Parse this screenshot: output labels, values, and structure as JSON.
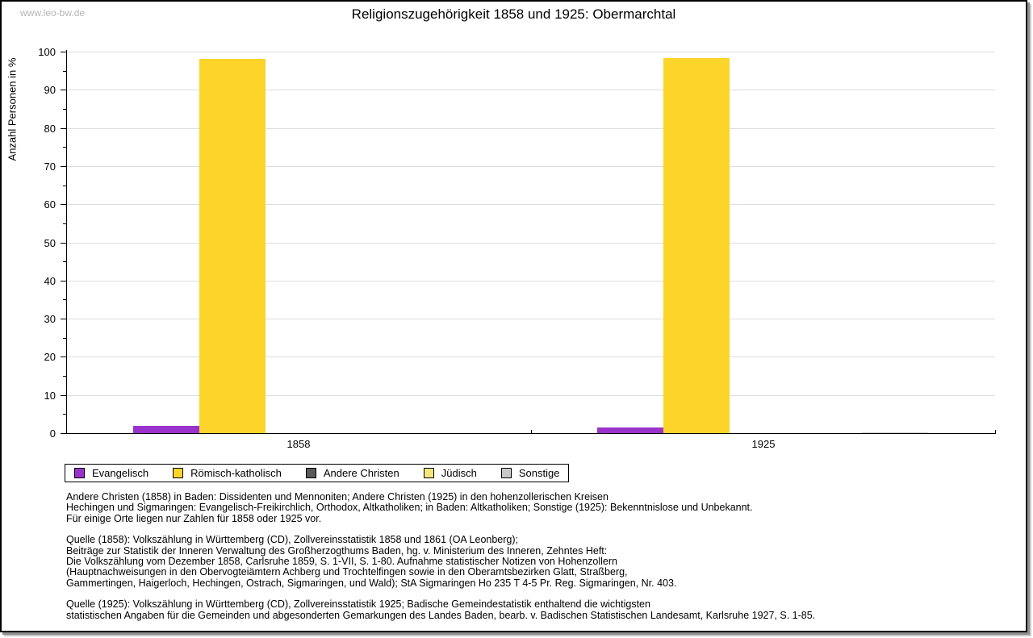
{
  "watermark": "www.leo-bw.de",
  "title": "Religionszugehörigkeit 1858 und 1925: Obermarchtal",
  "chart_data": {
    "type": "bar",
    "title": "Religionszugehörigkeit 1858 und 1925: Obermarchtal",
    "xlabel": "",
    "ylabel": "Anzahl Personen in %",
    "ylim": [
      0,
      100
    ],
    "ytick_major_step": 10,
    "ytick_minor_step": 5,
    "grid": true,
    "legend_position": "bottom",
    "categories": [
      "1858",
      "1925"
    ],
    "series": [
      {
        "name": "Evangelisch",
        "color": "#9933CC",
        "values": [
          1.8,
          1.4
        ]
      },
      {
        "name": "Römisch-katholisch",
        "color": "#FCD42A",
        "values": [
          98.2,
          98.4
        ]
      },
      {
        "name": "Andere Christen",
        "color": "#5A5A5A",
        "values": [
          0,
          0
        ]
      },
      {
        "name": "Jüdisch",
        "color": "#F5E37E",
        "values": [
          0,
          0
        ]
      },
      {
        "name": "Sonstige",
        "color": "#C8C8C8",
        "values": [
          0,
          0.2
        ]
      }
    ]
  },
  "colors": {
    "grid": "#DDDDDD",
    "axis": "#000000",
    "watermark": "#B5B5B5"
  },
  "footnotes": {
    "para1": [
      "Andere Christen (1858) in Baden: Dissidenten und Mennoniten; Andere Christen (1925) in den hohenzollerischen Kreisen",
      "Hechingen und Sigmaringen: Evangelisch-Freikirchlich, Orthodox, Altkatholiken; in Baden: Altkatholiken; Sonstige (1925): Bekenntnislose und Unbekannt.",
      "Für einige Orte liegen nur Zahlen für 1858 oder 1925 vor."
    ],
    "para2": [
      "Quelle (1858): Volkszählung in Württemberg (CD), Zollvereinsstatistik 1858 und 1861 (OA Leonberg);",
      "Beiträge zur Statistik der Inneren Verwaltung des Großherzogthums Baden, hg. v. Ministerium des Inneren, Zehntes Heft:",
      "Die Volkszählung vom Dezember 1858, Carlsruhe 1859, S. 1-VII, S. 1-80. Aufnahme statistischer Notizen von Hohenzollern",
      "(Hauptnachweisungen in den Obervogteiämtern Achberg und Trochtelfingen sowie in den Oberamtsbezirken Glatt, Straßberg,",
      "Gammertingen, Haigerloch, Hechingen, Ostrach, Sigmaringen, und Wald); StA Sigmaringen Ho 235 T 4-5 Pr. Reg. Sigmaringen, Nr. 403."
    ],
    "para3": [
      "Quelle (1925): Volkszählung in Württemberg (CD), Zollvereinsstatistik 1925; Badische Gemeindestatistik enthaltend die wichtigsten",
      "statistischen Angaben für die Gemeinden und abgesonderten Gemarkungen des Landes Baden, bearb. v. Badischen Statistischen Landesamt, Karlsruhe 1927, S. 1-85."
    ]
  }
}
